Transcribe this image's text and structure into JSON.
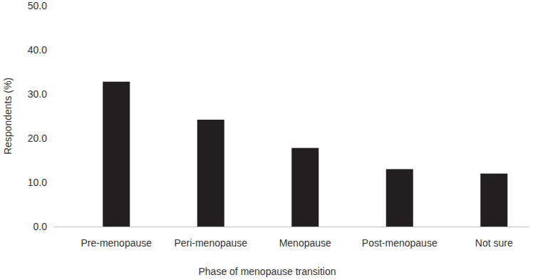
{
  "chart_data": {
    "type": "bar",
    "x_label": "Phase of menopause transition",
    "y_label": "Respondents (%)",
    "categories": [
      "Pre-menopause",
      "Peri-menopause",
      "Menopause",
      "Post-menopause",
      "Not sure"
    ],
    "values": [
      32.8,
      24.2,
      17.8,
      13.0,
      12.0
    ],
    "color": "#231f20",
    "ylim": [
      0,
      50
    ],
    "yticks": [
      {
        "value": 0,
        "label": "0.0"
      },
      {
        "value": 10,
        "label": "10.0"
      },
      {
        "value": 20,
        "label": "20.0"
      },
      {
        "value": 30,
        "label": "30.0"
      },
      {
        "value": 40,
        "label": "40.0"
      },
      {
        "value": 50,
        "label": "50.0"
      }
    ],
    "grid": false
  }
}
